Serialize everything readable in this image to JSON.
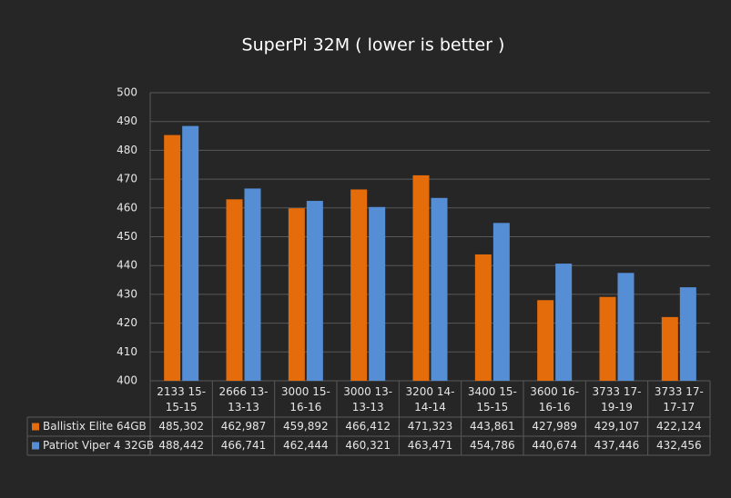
{
  "chart_data": {
    "type": "bar",
    "title": "SuperPi 32M ( lower is better )",
    "categories": [
      "2133 15-15-15",
      "2666 13-13-13",
      "3000 15-16-16",
      "3000 13-13-13",
      "3200 14-14-14",
      "3400 15-15-15",
      "3600 16-16-16",
      "3733 17-19-19",
      "3733 17-17-17"
    ],
    "series": [
      {
        "name": "Ballistix Elite 64GB",
        "color": "#e46c0a",
        "values": [
          485.302,
          462.987,
          459.892,
          466.412,
          471.323,
          443.861,
          427.989,
          429.107,
          422.124
        ],
        "value_labels": [
          "485,302",
          "462,987",
          "459,892",
          "466,412",
          "471,323",
          "443,861",
          "427,989",
          "429,107",
          "422,124"
        ]
      },
      {
        "name": "Patriot Viper 4 32GB",
        "color": "#558ed5",
        "values": [
          488.442,
          466.741,
          462.444,
          460.321,
          463.471,
          454.786,
          440.674,
          437.446,
          432.456
        ],
        "value_labels": [
          "488,442",
          "466,741",
          "462,444",
          "460,321",
          "463,471",
          "454,786",
          "440,674",
          "437,446",
          "432,456"
        ]
      }
    ],
    "ylim": [
      400,
      500
    ],
    "yticks": [
      400,
      410,
      420,
      430,
      440,
      450,
      460,
      470,
      480,
      490,
      500
    ],
    "grid": true
  }
}
